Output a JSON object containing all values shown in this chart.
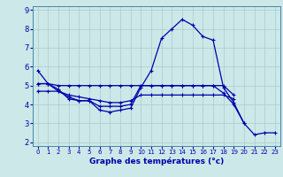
{
  "xlabel": "Graphe des températures (°c)",
  "background_color": "#cce8e8",
  "grid_color": "#aacccc",
  "line_color": "#0000aa",
  "spine_color": "#4488aa",
  "xlim": [
    -0.5,
    23.5
  ],
  "ylim": [
    1.8,
    9.2
  ],
  "yticks": [
    2,
    3,
    4,
    5,
    6,
    7,
    8,
    9
  ],
  "xticks": [
    0,
    1,
    2,
    3,
    4,
    5,
    6,
    7,
    8,
    9,
    10,
    11,
    12,
    13,
    14,
    15,
    16,
    17,
    18,
    19,
    20,
    21,
    22,
    23
  ],
  "curve1_x": [
    0,
    1,
    2,
    3,
    4,
    5,
    6,
    7,
    8,
    9,
    10,
    11,
    12,
    13,
    14,
    15,
    16,
    17,
    18,
    19,
    20,
    21,
    22,
    23
  ],
  "curve1_y": [
    5.8,
    5.1,
    4.7,
    4.4,
    4.2,
    4.2,
    3.7,
    3.6,
    3.7,
    3.8,
    4.9,
    5.8,
    7.5,
    8.0,
    8.5,
    8.2,
    7.6,
    7.4,
    4.9,
    4.1,
    3.0,
    2.4,
    2.5,
    2.5
  ],
  "curve2_x": [
    0,
    1,
    2,
    3,
    4,
    5,
    6,
    7,
    8,
    9,
    10,
    11,
    12,
    13,
    14,
    15,
    16,
    17,
    18,
    19,
    20
  ],
  "curve2_y": [
    5.1,
    5.1,
    4.8,
    4.3,
    4.2,
    4.2,
    3.9,
    3.9,
    3.9,
    4.0,
    5.0,
    5.0,
    5.0,
    5.0,
    5.0,
    5.0,
    5.0,
    5.0,
    4.6,
    4.0,
    3.0
  ],
  "curve3_x": [
    0,
    1,
    2,
    3,
    4,
    5,
    6,
    7,
    8,
    9,
    10,
    11,
    12,
    13,
    14,
    15,
    16,
    17,
    18,
    19
  ],
  "curve3_y": [
    4.7,
    4.7,
    4.7,
    4.5,
    4.4,
    4.3,
    4.2,
    4.1,
    4.1,
    4.2,
    4.5,
    4.5,
    4.5,
    4.5,
    4.5,
    4.5,
    4.5,
    4.5,
    4.5,
    4.3
  ],
  "curve4_x": [
    0,
    1,
    2,
    3,
    4,
    5,
    6,
    7,
    8,
    9,
    10,
    11,
    12,
    13,
    14,
    15,
    16,
    17,
    18,
    19
  ],
  "curve4_y": [
    5.1,
    5.1,
    5.0,
    5.0,
    5.0,
    5.0,
    5.0,
    5.0,
    5.0,
    5.0,
    5.0,
    5.0,
    5.0,
    5.0,
    5.0,
    5.0,
    5.0,
    5.0,
    5.0,
    4.5
  ],
  "xlabel_fontsize": 6.5,
  "tick_fontsize_x": 5.0,
  "tick_fontsize_y": 6.0,
  "linewidth": 0.9,
  "markersize": 2.8
}
